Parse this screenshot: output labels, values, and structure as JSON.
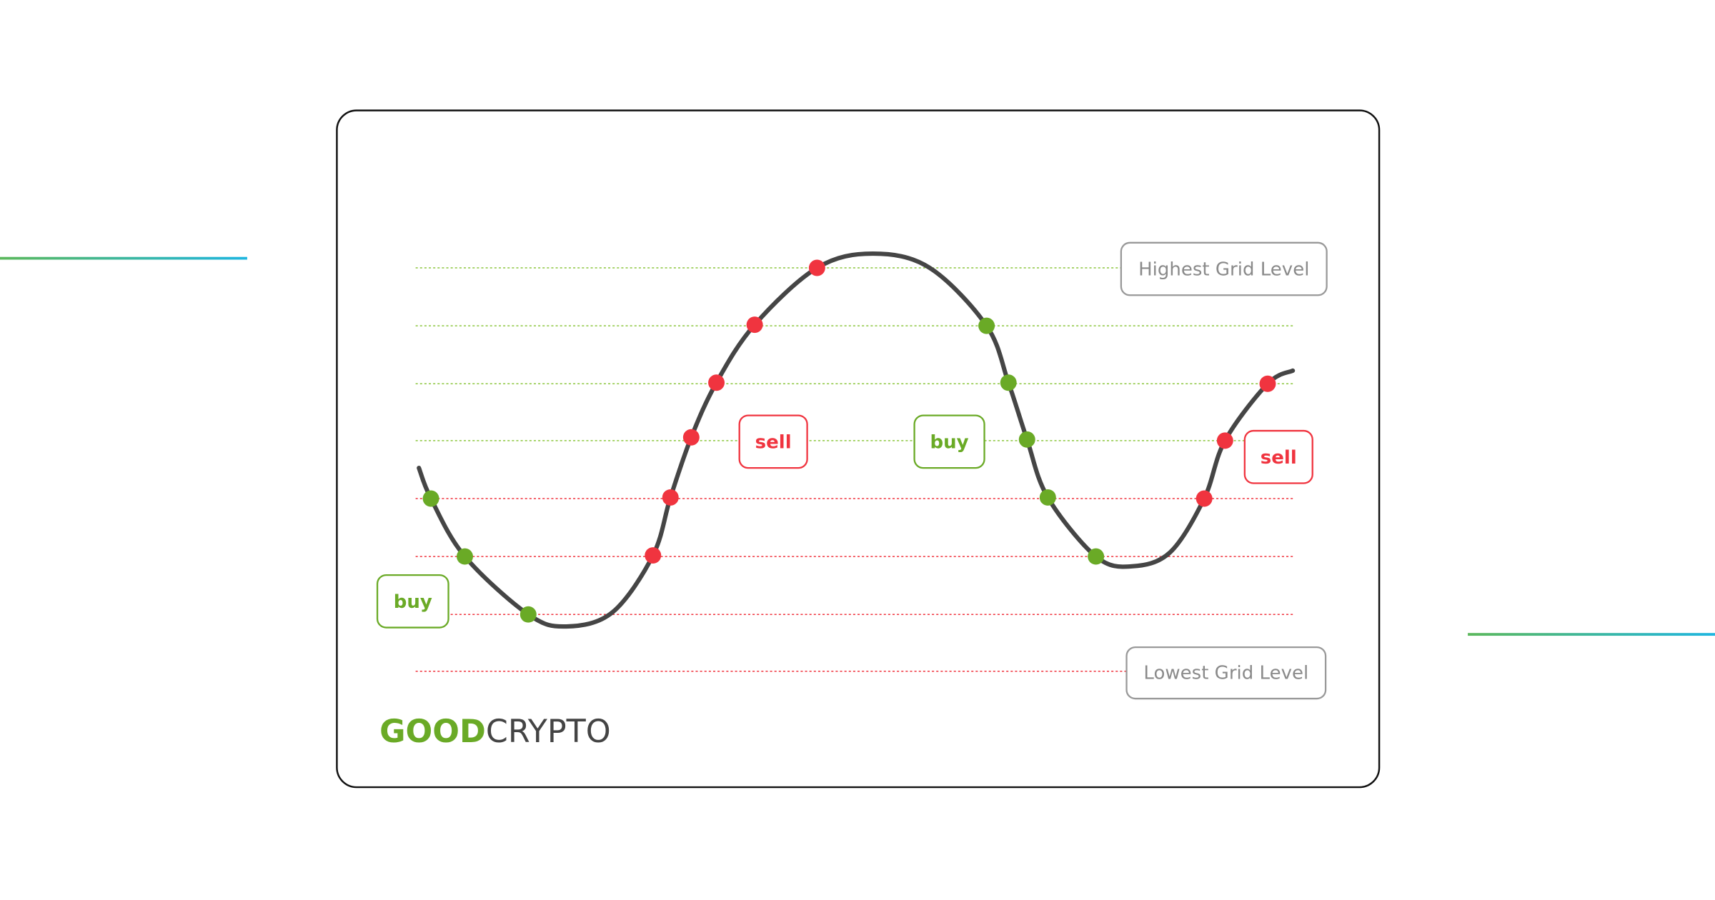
{
  "grid_levels": {
    "highest": "Highest Grid Level",
    "lowest": "Lowest Grid Level"
  },
  "signals": [
    "buy",
    "sell",
    "buy",
    "sell"
  ],
  "logo": {
    "good": "GOOD",
    "crypto": "CRYPTO"
  }
}
